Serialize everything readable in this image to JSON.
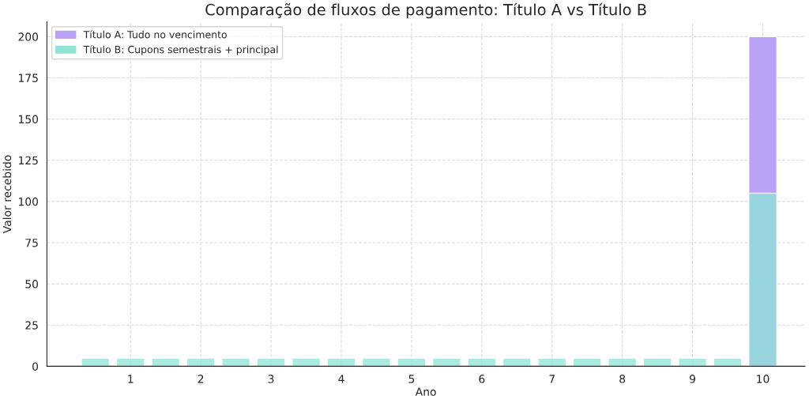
{
  "chart_data": {
    "type": "bar",
    "title": "Comparação de fluxos de pagamento: Título A vs Título B",
    "xlabel": "Ano",
    "ylabel": "Valor recebido",
    "series": [
      {
        "name": "Título A: Tudo no vencimento",
        "color": "#b9a3f6",
        "x": [
          10
        ],
        "values": [
          200
        ]
      },
      {
        "name": "Título B: Cupons semestrais + principal",
        "color": "#8ee5d5",
        "x": [
          0.5,
          1,
          1.5,
          2,
          2.5,
          3,
          3.5,
          4,
          4.5,
          5,
          5.5,
          6,
          6.5,
          7,
          7.5,
          8,
          8.5,
          9,
          9.5,
          10
        ],
        "values": [
          5,
          5,
          5,
          5,
          5,
          5,
          5,
          5,
          5,
          5,
          5,
          5,
          5,
          5,
          5,
          5,
          5,
          5,
          5,
          105
        ]
      }
    ],
    "xlim": [
      -0.19,
      10.6
    ],
    "xticks": [
      1,
      2,
      3,
      4,
      5,
      6,
      7,
      8,
      9,
      10
    ],
    "ylim": [
      0,
      209
    ],
    "yticks": [
      0,
      25,
      50,
      75,
      100,
      125,
      150,
      175,
      200
    ],
    "grid": true,
    "legend": "top left"
  }
}
